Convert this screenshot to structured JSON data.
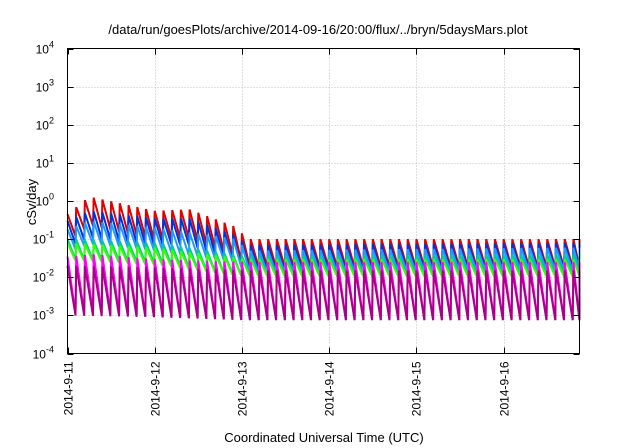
{
  "chart_data": {
    "type": "line",
    "title": "/data/run/goesPlots/archive/2014-09-16/20:00/flux/../bryn/5daysMars.plot",
    "xlabel": "Coordinated Universal Time (UTC)",
    "ylabel": "cSv/day",
    "y_scale": "log",
    "ylim": [
      0.0001,
      10000
    ],
    "y_ticks": [
      {
        "base": "10",
        "exp": "-4"
      },
      {
        "base": "10",
        "exp": "-3"
      },
      {
        "base": "10",
        "exp": "-2"
      },
      {
        "base": "10",
        "exp": "-1"
      },
      {
        "base": "10",
        "exp": "0"
      },
      {
        "base": "10",
        "exp": "1"
      },
      {
        "base": "10",
        "exp": "2"
      },
      {
        "base": "10",
        "exp": "3"
      },
      {
        "base": "10",
        "exp": "4"
      }
    ],
    "x_ticks": [
      "2014-9-11",
      "2014-9-12",
      "2014-9-13",
      "2014-9-14",
      "2014-9-15",
      "2014-9-16"
    ],
    "xlim_days": [
      0,
      5.87
    ],
    "grid": true,
    "legend": "none",
    "sawtooth_period_days": 0.1,
    "series": [
      {
        "color": "#e00000",
        "peaks": [
          {
            "x": 0,
            "y": 0.45
          },
          {
            "x": 0.25,
            "y": 1.3
          },
          {
            "x": 1.0,
            "y": 0.55
          },
          {
            "x": 1.4,
            "y": 0.6
          },
          {
            "x": 1.95,
            "y": 0.2
          },
          {
            "x": 2.05,
            "y": 0.1
          },
          {
            "x": 5.87,
            "y": 0.1
          }
        ],
        "trough_ratio": 0.18
      },
      {
        "color": "#0033dd",
        "peaks": [
          {
            "x": 0,
            "y": 0.3
          },
          {
            "x": 0.25,
            "y": 0.55
          },
          {
            "x": 1.0,
            "y": 0.35
          },
          {
            "x": 1.4,
            "y": 0.35
          },
          {
            "x": 1.95,
            "y": 0.12
          },
          {
            "x": 2.05,
            "y": 0.07
          },
          {
            "x": 5.87,
            "y": 0.08
          }
        ],
        "trough_ratio": 0.2
      },
      {
        "color": "#2299ff",
        "peaks": [
          {
            "x": 0,
            "y": 0.18
          },
          {
            "x": 0.25,
            "y": 0.3
          },
          {
            "x": 1.0,
            "y": 0.2
          },
          {
            "x": 1.95,
            "y": 0.1
          },
          {
            "x": 2.05,
            "y": 0.05
          },
          {
            "x": 5.87,
            "y": 0.06
          }
        ],
        "trough_ratio": 0.25
      },
      {
        "color": "#00cc99",
        "peaks": [
          {
            "x": 0,
            "y": 0.1
          },
          {
            "x": 1.0,
            "y": 0.08
          },
          {
            "x": 2.05,
            "y": 0.035
          },
          {
            "x": 5.87,
            "y": 0.04
          }
        ],
        "trough_ratio": 0.3
      },
      {
        "color": "#33ff00",
        "peaks": [
          {
            "x": 0,
            "y": 0.08
          },
          {
            "x": 1.0,
            "y": 0.06
          },
          {
            "x": 2.05,
            "y": 0.03
          },
          {
            "x": 5.87,
            "y": 0.03
          }
        ],
        "trough_ratio": 0.35
      },
      {
        "color": "#ff00ff",
        "peaks": [
          {
            "x": 0,
            "y": 0.035
          },
          {
            "x": 0.3,
            "y": 0.04
          },
          {
            "x": 1.0,
            "y": 0.03
          },
          {
            "x": 2.05,
            "y": 0.025
          },
          {
            "x": 5.87,
            "y": 0.025
          }
        ],
        "trough_ratio": 0.03
      },
      {
        "color": "#aa0088",
        "peaks": [
          {
            "x": 0,
            "y": 0.02
          },
          {
            "x": 1.0,
            "y": 0.018
          },
          {
            "x": 2.05,
            "y": 0.015
          },
          {
            "x": 5.87,
            "y": 0.015
          }
        ],
        "trough_ratio": 0.05
      }
    ]
  }
}
